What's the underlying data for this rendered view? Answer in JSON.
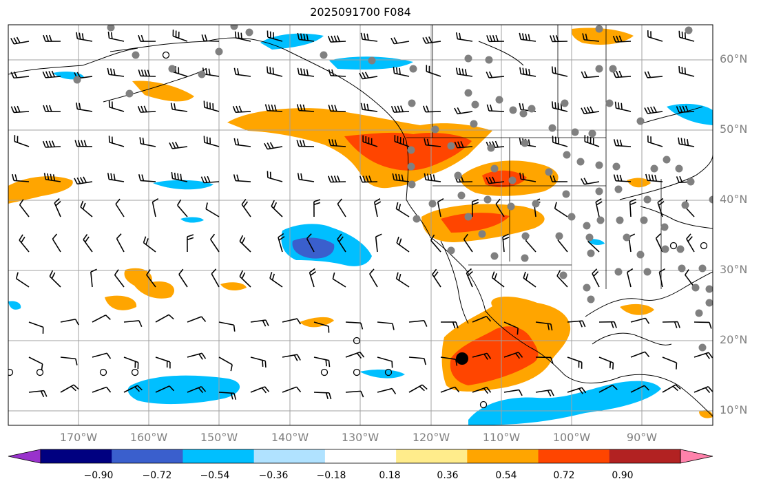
{
  "title": "2025091700 F084",
  "lat_labels": [
    "60°N",
    "50°N",
    "40°N",
    "30°N",
    "20°N",
    "10°N"
  ],
  "lon_labels": [
    "170°W",
    "160°W",
    "150°W",
    "140°W",
    "130°W",
    "120°W",
    "110°W",
    "100°W",
    "90°W"
  ],
  "colorbar": {
    "tick_labels": [
      "−0.90",
      "−0.72",
      "−0.54",
      "−0.36",
      "−0.18",
      "0.18",
      "0.36",
      "0.54",
      "0.72",
      "0.90"
    ],
    "colors": [
      "#9932cc",
      "#000080",
      "#3a5fcd",
      "#00bfff",
      "#b0e2ff",
      "#ffffff",
      "#ffec8b",
      "#ffa500",
      "#ff4500",
      "#b22222",
      "#ff82ab"
    ]
  },
  "map": {
    "extent_lon": [
      -180,
      -80
    ],
    "extent_lat": [
      8,
      65
    ],
    "grid": true,
    "coastline_color": "#000000",
    "gridline_color": "#a0a0a0",
    "station_color": "#808080",
    "marker_color": "#000000"
  }
}
